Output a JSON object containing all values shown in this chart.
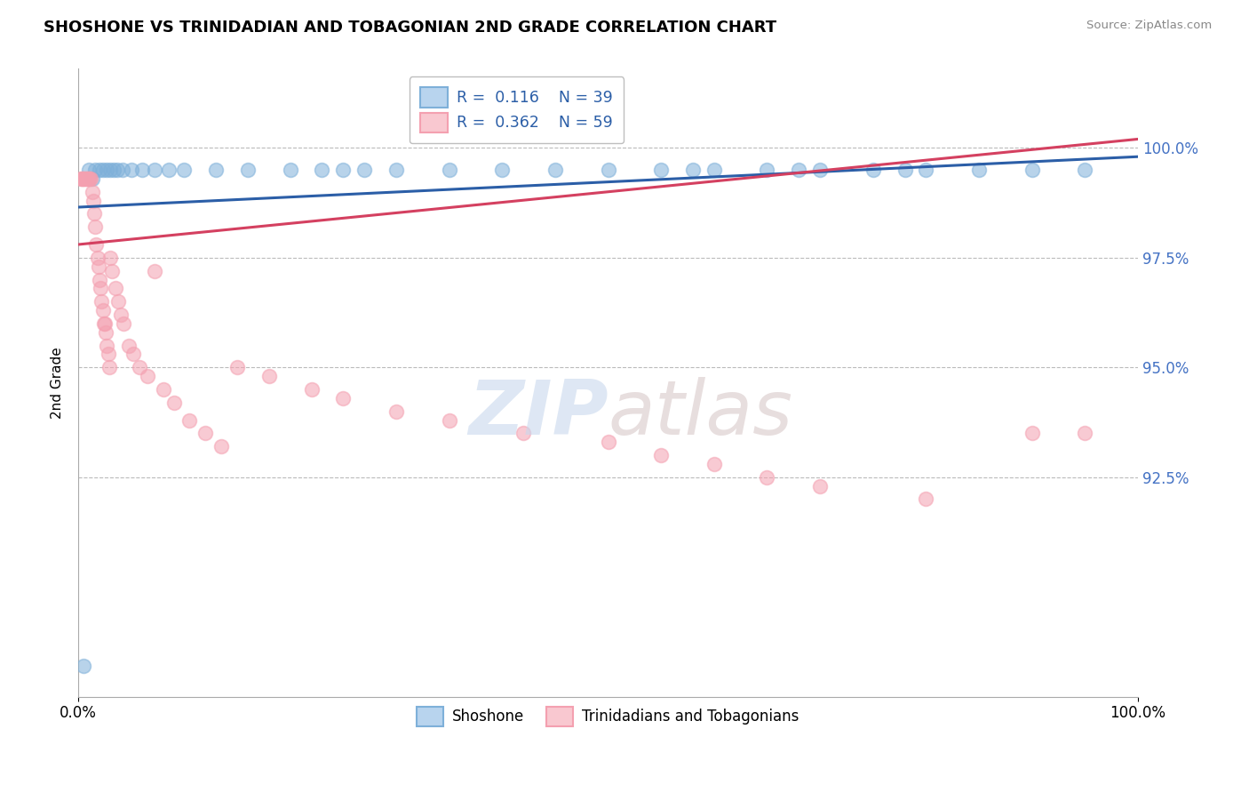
{
  "title": "SHOSHONE VS TRINIDADIAN AND TOBAGONIAN 2ND GRADE CORRELATION CHART",
  "source_text": "Source: ZipAtlas.com",
  "ylabel": "2nd Grade",
  "xlim": [
    0,
    100
  ],
  "ylim": [
    87.5,
    101.8
  ],
  "yticks": [
    92.5,
    95.0,
    97.5,
    100.0
  ],
  "blue_color": "#7EB0D9",
  "pink_color": "#F4A0B0",
  "trend_blue": "#2B5EA7",
  "trend_pink": "#D44060",
  "tick_label_color": "#4472C4",
  "shoshone_x": [
    0.5,
    1.0,
    1.3,
    1.6,
    2.0,
    2.3,
    2.7,
    3.0,
    3.3,
    3.7,
    4.2,
    5.0,
    6.0,
    7.2,
    8.5,
    10.0,
    13.0,
    16.0,
    20.0,
    23.0,
    25.0,
    27.0,
    30.0,
    35.0,
    40.0,
    45.0,
    50.0,
    55.0,
    60.0,
    65.0,
    70.0,
    75.0,
    80.0,
    85.0,
    90.0,
    95.0,
    58.0,
    68.0,
    78.0
  ],
  "shoshone_y": [
    88.2,
    99.5,
    99.3,
    99.5,
    99.5,
    99.5,
    99.5,
    99.5,
    99.5,
    99.5,
    99.5,
    99.5,
    99.5,
    99.5,
    99.5,
    99.5,
    99.5,
    99.5,
    99.5,
    99.5,
    99.5,
    99.5,
    99.5,
    99.5,
    99.5,
    99.5,
    99.5,
    99.5,
    99.5,
    99.5,
    99.5,
    99.5,
    99.5,
    99.5,
    99.5,
    99.5,
    99.5,
    99.5,
    99.5
  ],
  "trini_x": [
    0.2,
    0.3,
    0.4,
    0.5,
    0.6,
    0.7,
    0.8,
    0.9,
    1.0,
    1.1,
    1.2,
    1.3,
    1.4,
    1.5,
    1.6,
    1.7,
    1.8,
    1.9,
    2.0,
    2.1,
    2.2,
    2.3,
    2.4,
    2.5,
    2.6,
    2.7,
    2.8,
    2.9,
    3.0,
    3.2,
    3.5,
    3.8,
    4.0,
    4.3,
    4.8,
    5.2,
    5.8,
    6.5,
    7.2,
    8.0,
    9.0,
    10.5,
    12.0,
    13.5,
    15.0,
    18.0,
    22.0,
    25.0,
    30.0,
    35.0,
    42.0,
    50.0,
    55.0,
    60.0,
    65.0,
    70.0,
    80.0,
    90.0,
    95.0
  ],
  "trini_y": [
    99.3,
    99.3,
    99.3,
    99.3,
    99.3,
    99.3,
    99.3,
    99.3,
    99.3,
    99.3,
    99.3,
    99.0,
    98.8,
    98.5,
    98.2,
    97.8,
    97.5,
    97.3,
    97.0,
    96.8,
    96.5,
    96.3,
    96.0,
    96.0,
    95.8,
    95.5,
    95.3,
    95.0,
    97.5,
    97.2,
    96.8,
    96.5,
    96.2,
    96.0,
    95.5,
    95.3,
    95.0,
    94.8,
    97.2,
    94.5,
    94.2,
    93.8,
    93.5,
    93.2,
    95.0,
    94.8,
    94.5,
    94.3,
    94.0,
    93.8,
    93.5,
    93.3,
    93.0,
    92.8,
    92.5,
    92.3,
    92.0,
    93.5,
    93.5
  ],
  "blue_trend_x": [
    0,
    100
  ],
  "blue_trend_y": [
    98.65,
    99.8
  ],
  "pink_trend_x": [
    0,
    100
  ],
  "pink_trend_y": [
    97.8,
    100.2
  ],
  "watermark_zip": "ZIP",
  "watermark_atlas": "atlas",
  "legend_labels": [
    "R =  0.116    N = 39",
    "R =  0.362    N = 59"
  ],
  "bottom_labels": [
    "Shoshone",
    "Trinidadians and Tobagonians"
  ]
}
